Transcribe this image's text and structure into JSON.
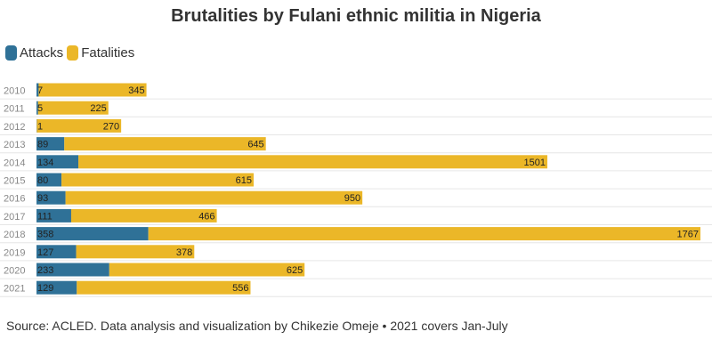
{
  "title": "Brutalities by Fulani ethnic militia in Nigeria",
  "legend": [
    {
      "label": "Attacks",
      "color": "#2f7197"
    },
    {
      "label": "Fatalities",
      "color": "#ebb728"
    }
  ],
  "source": "Source: ACLED. Data analysis and visualization by Chikezie Omeje • 2021 covers Jan-July",
  "chart_data": {
    "type": "bar",
    "orientation": "horizontal",
    "stacked": true,
    "title": "Brutalities by Fulani ethnic militia in Nigeria",
    "legend_position": "top-left",
    "grid": true,
    "categories": [
      "2010",
      "2011",
      "2012",
      "2013",
      "2014",
      "2015",
      "2016",
      "2017",
      "2018",
      "2019",
      "2020",
      "2021"
    ],
    "series": [
      {
        "name": "Attacks",
        "color": "#2f7197",
        "values": [
          7,
          5,
          1,
          89,
          134,
          80,
          93,
          111,
          358,
          127,
          233,
          129
        ]
      },
      {
        "name": "Fatalities",
        "color": "#ebb728",
        "values": [
          345,
          225,
          270,
          645,
          1501,
          615,
          950,
          466,
          1767,
          378,
          625,
          556
        ]
      }
    ]
  }
}
